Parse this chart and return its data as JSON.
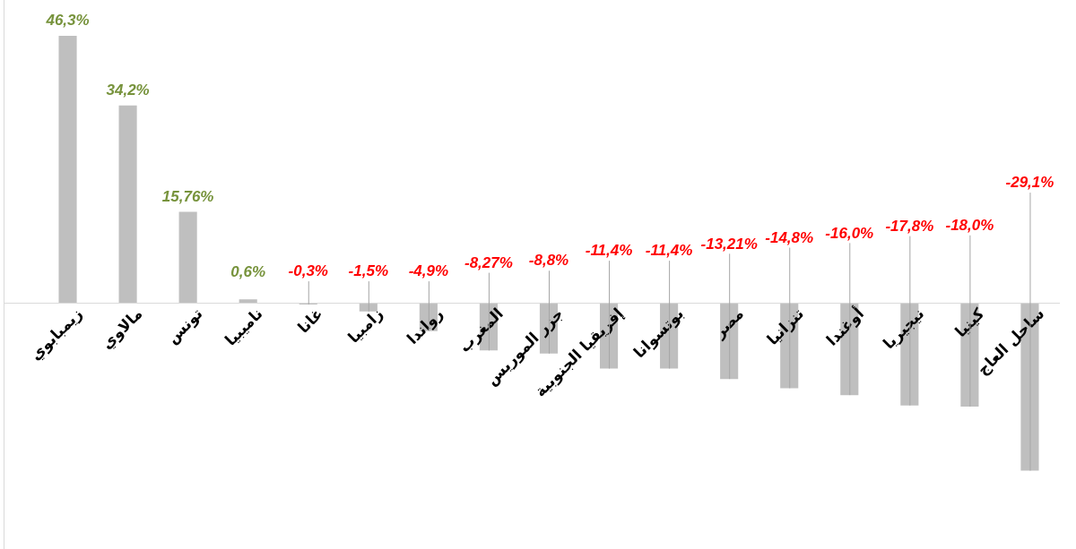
{
  "chart_data": {
    "type": "bar",
    "categories": [
      "زيمبابوي",
      "مالاوي",
      "تونس",
      "ناميبيا",
      "غانا",
      "زامبيا",
      "رواندا",
      "المغرب",
      "جزر الموريس",
      "إفريقيا الجنوبية",
      "بوتسوانا",
      "مصر",
      "تنزانيا",
      "أوغندا",
      "نيجيريا",
      "كينيا",
      "ساحل العاج"
    ],
    "values": [
      46.3,
      34.2,
      15.76,
      0.6,
      -0.3,
      -1.5,
      -4.9,
      -8.27,
      -8.8,
      -11.4,
      -11.4,
      -13.21,
      -14.8,
      -16.0,
      -17.8,
      -18.0,
      -29.1
    ],
    "color": "#bfbfbf",
    "value_labels": [
      "46,3%",
      "34,2%",
      "15,76%",
      "0,6%",
      "-0,3%",
      "-1,5%",
      "-4,9%",
      "-8,27%",
      "-8,8%",
      "-11,4%",
      "-11,4%",
      "-13,21%",
      "-14,8%",
      "-16,0%",
      "-17,8%",
      "-18,0%",
      "-29,1%"
    ]
  }
}
